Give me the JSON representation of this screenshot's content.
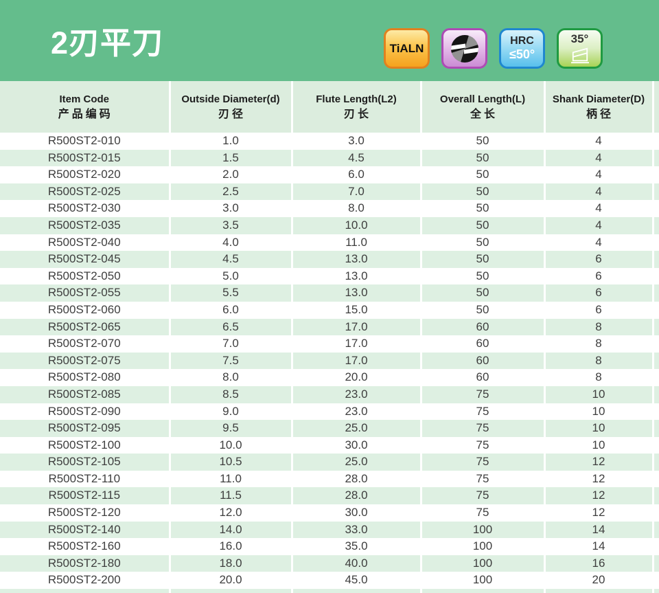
{
  "banner": {
    "title": "2刃平刀",
    "bg_color": "#64bd8c"
  },
  "badges": {
    "tialn_label": "TiALN",
    "ball_icon": "two-flute-end-mill-icon",
    "hrc_line1": "HRC",
    "hrc_line2": "≤50°",
    "helix_label": "35°"
  },
  "table": {
    "columns": [
      {
        "en": "Item Code",
        "zh": "产品编码"
      },
      {
        "en": "Outside Diameter(d)",
        "zh": "刃径"
      },
      {
        "en": "Flute Length(L2)",
        "zh": "刃长"
      },
      {
        "en": "Overall Length(L)",
        "zh": "全长"
      },
      {
        "en": "Shank Diameter(D)",
        "zh": "柄径"
      }
    ],
    "rows": [
      [
        "R500ST2-010",
        "1.0",
        "3.0",
        "50",
        "4"
      ],
      [
        "R500ST2-015",
        "1.5",
        "4.5",
        "50",
        "4"
      ],
      [
        "R500ST2-020",
        "2.0",
        "6.0",
        "50",
        "4"
      ],
      [
        "R500ST2-025",
        "2.5",
        "7.0",
        "50",
        "4"
      ],
      [
        "R500ST2-030",
        "3.0",
        "8.0",
        "50",
        "4"
      ],
      [
        "R500ST2-035",
        "3.5",
        "10.0",
        "50",
        "4"
      ],
      [
        "R500ST2-040",
        "4.0",
        "11.0",
        "50",
        "4"
      ],
      [
        "R500ST2-045",
        "4.5",
        "13.0",
        "50",
        "6"
      ],
      [
        "R500ST2-050",
        "5.0",
        "13.0",
        "50",
        "6"
      ],
      [
        "R500ST2-055",
        "5.5",
        "13.0",
        "50",
        "6"
      ],
      [
        "R500ST2-060",
        "6.0",
        "15.0",
        "50",
        "6"
      ],
      [
        "R500ST2-065",
        "6.5",
        "17.0",
        "60",
        "8"
      ],
      [
        "R500ST2-070",
        "7.0",
        "17.0",
        "60",
        "8"
      ],
      [
        "R500ST2-075",
        "7.5",
        "17.0",
        "60",
        "8"
      ],
      [
        "R500ST2-080",
        "8.0",
        "20.0",
        "60",
        "8"
      ],
      [
        "R500ST2-085",
        "8.5",
        "23.0",
        "75",
        "10"
      ],
      [
        "R500ST2-090",
        "9.0",
        "23.0",
        "75",
        "10"
      ],
      [
        "R500ST2-095",
        "9.5",
        "25.0",
        "75",
        "10"
      ],
      [
        "R500ST2-100",
        "10.0",
        "30.0",
        "75",
        "10"
      ],
      [
        "R500ST2-105",
        "10.5",
        "25.0",
        "75",
        "12"
      ],
      [
        "R500ST2-110",
        "11.0",
        "28.0",
        "75",
        "12"
      ],
      [
        "R500ST2-115",
        "11.5",
        "28.0",
        "75",
        "12"
      ],
      [
        "R500ST2-120",
        "12.0",
        "30.0",
        "75",
        "12"
      ],
      [
        "R500ST2-140",
        "14.0",
        "33.0",
        "100",
        "14"
      ],
      [
        "R500ST2-160",
        "16.0",
        "35.0",
        "100",
        "14"
      ],
      [
        "R500ST2-180",
        "18.0",
        "40.0",
        "100",
        "16"
      ],
      [
        "R500ST2-200",
        "20.0",
        "45.0",
        "100",
        "20"
      ]
    ]
  }
}
